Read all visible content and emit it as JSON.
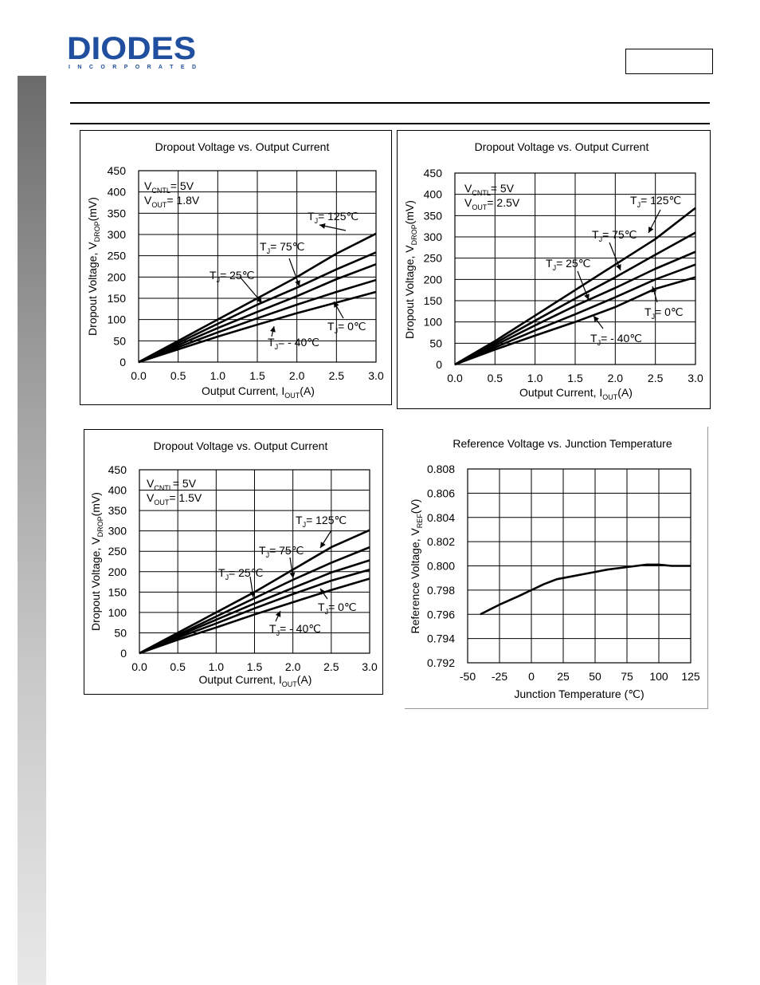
{
  "header": {
    "brand": "DIODES",
    "brand_sub": "I N C O R P O R A T E D",
    "brand_color": "#1f4f9e"
  },
  "chart_data": [
    {
      "type": "line",
      "title": "Dropout Voltage vs. Output Current",
      "xlabel": "Output Current, I",
      "xlabel_sub": "OUT",
      "xlabel_unit": "(A)",
      "ylabel": "Dropout Voltage, V",
      "ylabel_sub": "DROP",
      "ylabel_unit": "(mV)",
      "xlim": [
        0,
        3
      ],
      "ylim": [
        0,
        450
      ],
      "x_ticks": [
        "0.0",
        "0.5",
        "1.0",
        "1.5",
        "2.0",
        "2.5",
        "3.0"
      ],
      "y_ticks": [
        "0",
        "50",
        "100",
        "150",
        "200",
        "250",
        "300",
        "350",
        "400",
        "450"
      ],
      "grid": true,
      "conditions": [
        {
          "main": "V",
          "sub": "CNTL",
          "rest": "= 5V"
        },
        {
          "main": "V",
          "sub": "OUT",
          "rest": "= 1.8V"
        }
      ],
      "x": [
        0,
        0.5,
        1.0,
        1.5,
        2.0,
        2.5,
        3.0
      ],
      "series": [
        {
          "name": "TJ = 125℃",
          "values": [
            0,
            50,
            100,
            150,
            200,
            255,
            302
          ]
        },
        {
          "name": "TJ = 75℃",
          "values": [
            0,
            45,
            90,
            135,
            175,
            218,
            258
          ]
        },
        {
          "name": "TJ = 25℃",
          "values": [
            0,
            40,
            80,
            118,
            155,
            195,
            230
          ]
        },
        {
          "name": "TJ = 0℃",
          "values": [
            0,
            35,
            70,
            103,
            135,
            165,
            193
          ]
        },
        {
          "name": "TJ = - 40℃",
          "values": [
            0,
            30,
            60,
            88,
            115,
            140,
            165
          ]
        }
      ],
      "annotations": [
        {
          "main": "T",
          "sub": "J",
          "rest": "= 125℃"
        },
        {
          "main": "T",
          "sub": "J",
          "rest": "= 75℃"
        },
        {
          "main": "T",
          "sub": "J",
          "rest": "= 25℃"
        },
        {
          "main": "T",
          "sub": "J",
          "rest": "= 0℃"
        },
        {
          "main": "T",
          "sub": "J",
          "rest": "= - 40℃"
        }
      ]
    },
    {
      "type": "line",
      "title": "Dropout Voltage vs. Output Current",
      "xlabel": "Output Current, I",
      "xlabel_sub": "OUT",
      "xlabel_unit": "(A)",
      "ylabel": "Dropout Voltage, V",
      "ylabel_sub": "DROP",
      "ylabel_unit": "(mV)",
      "xlim": [
        0,
        3
      ],
      "ylim": [
        0,
        450
      ],
      "x_ticks": [
        "0.0",
        "0.5",
        "1.0",
        "1.5",
        "2.0",
        "2.5",
        "3.0"
      ],
      "y_ticks": [
        "0",
        "50",
        "100",
        "150",
        "200",
        "250",
        "300",
        "350",
        "400",
        "450"
      ],
      "grid": true,
      "conditions": [
        {
          "main": "V",
          "sub": "CNTL",
          "rest": "= 5V"
        },
        {
          "main": "V",
          "sub": "OUT",
          "rest": "= 2.5V"
        }
      ],
      "x": [
        0,
        0.5,
        1.0,
        1.5,
        2.0,
        2.5,
        3.0
      ],
      "series": [
        {
          "name": "TJ = 125℃",
          "values": [
            0,
            55,
            115,
            175,
            235,
            295,
            368
          ]
        },
        {
          "name": "TJ = 75℃",
          "values": [
            0,
            50,
            103,
            155,
            205,
            258,
            310
          ]
        },
        {
          "name": "TJ = 25℃",
          "values": [
            0,
            45,
            92,
            138,
            180,
            225,
            265
          ]
        },
        {
          "name": "TJ = 0℃",
          "values": [
            0,
            40,
            80,
            118,
            158,
            200,
            235
          ]
        },
        {
          "name": "TJ = - 40℃",
          "values": [
            0,
            35,
            68,
            100,
            135,
            178,
            205
          ]
        }
      ],
      "annotations": [
        {
          "main": "T",
          "sub": "J",
          "rest": "= 125℃"
        },
        {
          "main": "T",
          "sub": "J",
          "rest": "= 75℃"
        },
        {
          "main": "T",
          "sub": "J",
          "rest": "= 25℃"
        },
        {
          "main": "T",
          "sub": "J",
          "rest": "= 0℃"
        },
        {
          "main": "T",
          "sub": "J",
          "rest": "= - 40℃"
        }
      ]
    },
    {
      "type": "line",
      "title": "Dropout Voltage vs. Output Current",
      "xlabel": "Output Current, I",
      "xlabel_sub": "OUT",
      "xlabel_unit": "(A)",
      "ylabel": "Dropout Voltage, V",
      "ylabel_sub": "DROP",
      "ylabel_unit": "(mV)",
      "xlim": [
        0,
        3
      ],
      "ylim": [
        0,
        450
      ],
      "x_ticks": [
        "0.0",
        "0.5",
        "1.0",
        "1.5",
        "2.0",
        "2.5",
        "3.0"
      ],
      "y_ticks": [
        "0",
        "50",
        "100",
        "150",
        "200",
        "250",
        "300",
        "350",
        "400",
        "450"
      ],
      "grid": true,
      "conditions": [
        {
          "main": "V",
          "sub": "CNTL",
          "rest": "= 5V"
        },
        {
          "main": "V",
          "sub": "OUT",
          "rest": "= 1.5V"
        }
      ],
      "x": [
        0,
        0.5,
        1.0,
        1.5,
        2.0,
        2.5,
        3.0
      ],
      "series": [
        {
          "name": "TJ = 125℃",
          "values": [
            0,
            50,
            100,
            150,
            205,
            260,
            302
          ]
        },
        {
          "name": "TJ = 75℃",
          "values": [
            0,
            45,
            90,
            135,
            180,
            222,
            260
          ]
        },
        {
          "name": "TJ = 25℃",
          "values": [
            0,
            42,
            82,
            122,
            160,
            198,
            228
          ]
        },
        {
          "name": "TJ = 0℃",
          "values": [
            0,
            38,
            73,
            110,
            145,
            178,
            205
          ]
        },
        {
          "name": "TJ = - 40℃",
          "values": [
            0,
            33,
            63,
            95,
            125,
            155,
            183
          ]
        }
      ],
      "annotations": [
        {
          "main": "T",
          "sub": "J",
          "rest": "= 125℃"
        },
        {
          "main": "T",
          "sub": "J",
          "rest": "= 75℃"
        },
        {
          "main": "T",
          "sub": "J",
          "rest": "= 25℃"
        },
        {
          "main": "T",
          "sub": "J",
          "rest": "= 0℃"
        },
        {
          "main": "T",
          "sub": "J",
          "rest": "= - 40℃"
        }
      ]
    },
    {
      "type": "line",
      "title": "Reference Voltage vs. Junction Temperature",
      "xlabel": "Junction Temperature (℃)",
      "ylabel": "Reference Voltage, V",
      "ylabel_sub": "REF",
      "ylabel_unit": "(V)",
      "xlim": [
        -50,
        125
      ],
      "ylim": [
        0.792,
        0.808
      ],
      "x_ticks": [
        "-50",
        "-25",
        "0",
        "25",
        "50",
        "75",
        "100",
        "125"
      ],
      "y_ticks": [
        "0.792",
        "0.794",
        "0.796",
        "0.798",
        "0.800",
        "0.802",
        "0.804",
        "0.806",
        "0.808"
      ],
      "grid": true,
      "x": [
        -40,
        -25,
        -10,
        0,
        10,
        20,
        30,
        40,
        50,
        60,
        75,
        90,
        100,
        110,
        125
      ],
      "series": [
        {
          "values": [
            0.796,
            0.7968,
            0.7975,
            0.798,
            0.7985,
            0.7989,
            0.7991,
            0.7993,
            0.7995,
            0.7997,
            0.7999,
            0.8001,
            0.8001,
            0.8,
            0.8
          ]
        }
      ]
    }
  ]
}
